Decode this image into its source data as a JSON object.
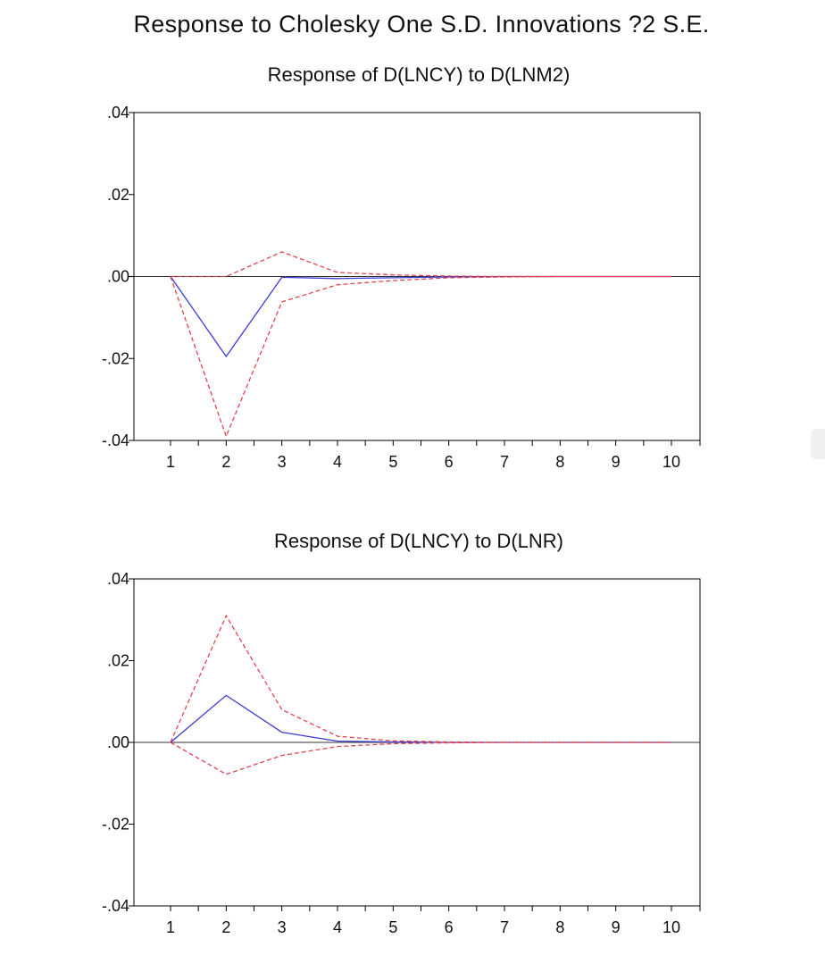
{
  "title": "Response to Cholesky One S.D. Innovations ?2 S.E.",
  "chart_data": [
    {
      "type": "line",
      "title": "Response of D(LNCY) to D(LNM2)",
      "x": [
        1,
        2,
        3,
        4,
        5,
        6,
        7,
        8,
        9,
        10
      ],
      "x_tick_labels": [
        "1",
        "2",
        "3",
        "4",
        "5",
        "6",
        "7",
        "8",
        "9",
        "10"
      ],
      "y_tick_values": [
        0.04,
        0.02,
        0.0,
        -0.02,
        -0.04
      ],
      "y_tick_labels": [
        ".04",
        ".02",
        ".00",
        "-.02",
        "-.04"
      ],
      "ylim": [
        -0.04,
        0.04
      ],
      "zero_line": true,
      "series": [
        {
          "role": "response",
          "color": "#3b3bd6",
          "style": "solid",
          "values": [
            0.0,
            -0.0195,
            -0.0002,
            -0.0005,
            -0.0003,
            -0.0001,
            0.0,
            0.0,
            0.0,
            0.0
          ]
        },
        {
          "role": "upper",
          "color": "#e0454f",
          "style": "dashed",
          "values": [
            0.0,
            0.0,
            0.006,
            0.001,
            0.0004,
            0.0001,
            0.0,
            0.0,
            0.0,
            0.0
          ]
        },
        {
          "role": "lower",
          "color": "#e0454f",
          "style": "dashed",
          "values": [
            0.0,
            -0.039,
            -0.0062,
            -0.002,
            -0.001,
            -0.0003,
            -0.0001,
            0.0,
            0.0,
            0.0
          ]
        }
      ]
    },
    {
      "type": "line",
      "title": "Response of D(LNCY) to D(LNR)",
      "x": [
        1,
        2,
        3,
        4,
        5,
        6,
        7,
        8,
        9,
        10
      ],
      "x_tick_labels": [
        "1",
        "2",
        "3",
        "4",
        "5",
        "6",
        "7",
        "8",
        "9",
        "10"
      ],
      "y_tick_values": [
        0.04,
        0.02,
        0.0,
        -0.02,
        -0.04
      ],
      "y_tick_labels": [
        ".04",
        ".02",
        ".00",
        "-.02",
        "-.04"
      ],
      "ylim": [
        -0.04,
        0.04
      ],
      "zero_line": true,
      "series": [
        {
          "role": "response",
          "color": "#3b3bd6",
          "style": "solid",
          "values": [
            0.0,
            0.0115,
            0.0025,
            0.0003,
            0.0001,
            0.0,
            0.0,
            0.0,
            0.0,
            0.0
          ]
        },
        {
          "role": "upper",
          "color": "#e0454f",
          "style": "dashed",
          "values": [
            0.0,
            0.031,
            0.008,
            0.0015,
            0.0004,
            0.0001,
            0.0,
            0.0,
            0.0,
            0.0
          ]
        },
        {
          "role": "lower",
          "color": "#e0454f",
          "style": "dashed",
          "values": [
            0.0,
            -0.0078,
            -0.0032,
            -0.001,
            -0.0003,
            -0.0001,
            0.0,
            0.0,
            0.0,
            0.0
          ]
        }
      ]
    }
  ]
}
